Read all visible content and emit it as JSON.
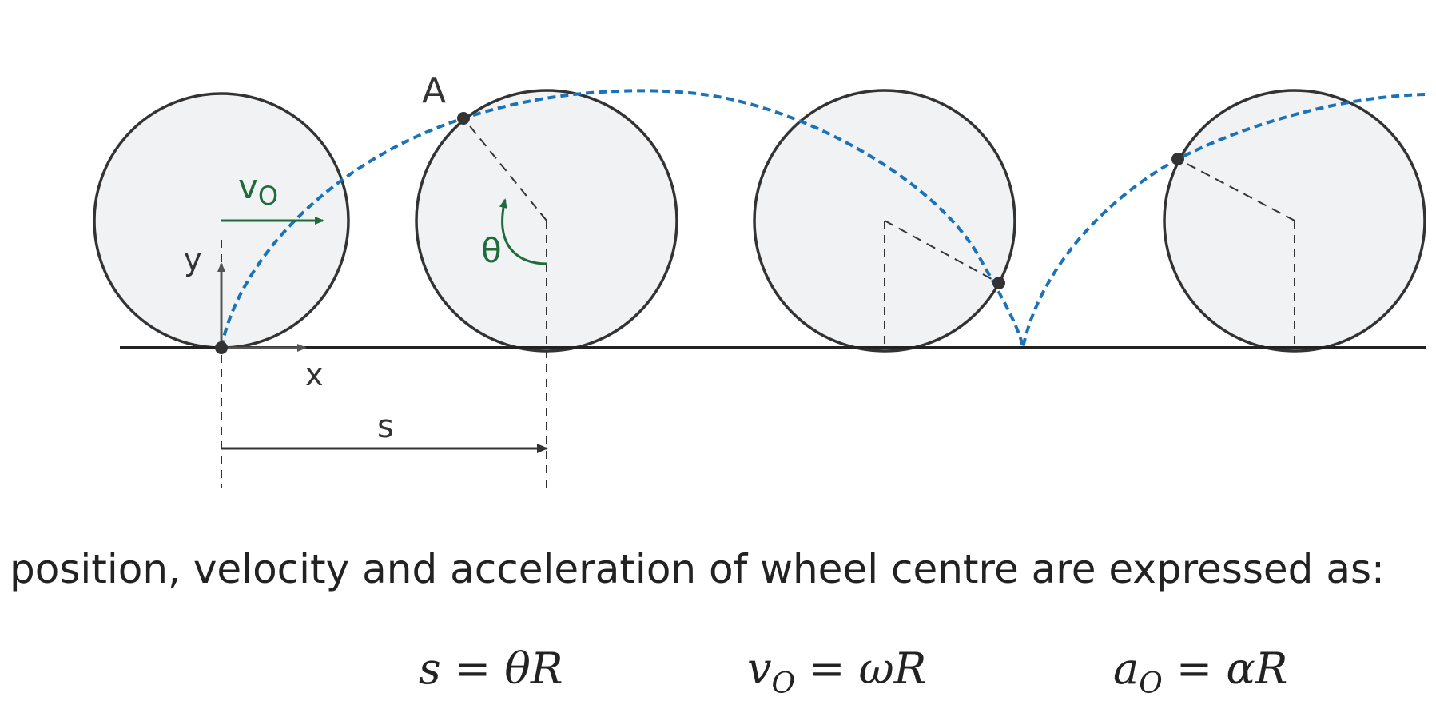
{
  "diagram": {
    "labels": {
      "point": "A",
      "velocity": "v",
      "velocity_sub": "O",
      "x_axis": "x",
      "y_axis": "y",
      "angle": "θ",
      "distance": "s"
    },
    "colors": {
      "wheel_fill": "#f1f2f3",
      "wheel_stroke": "#333333",
      "cycloid": "#1a73b8",
      "velocity_arrow": "#1e6b3c",
      "axes": "#555555"
    }
  },
  "caption": "position, velocity and acceleration of wheel centre are expressed as:",
  "equations": [
    {
      "lhs": "s",
      "sub": "",
      "op": "=",
      "rhs": "θR"
    },
    {
      "lhs": "v",
      "sub": "O",
      "op": "=",
      "rhs": "ωR"
    },
    {
      "lhs": "a",
      "sub": "O",
      "op": "=",
      "rhs": "αR"
    }
  ]
}
